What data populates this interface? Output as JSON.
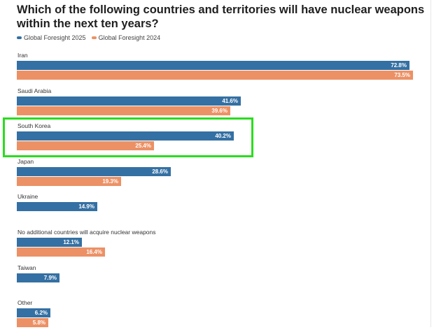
{
  "chart_data": {
    "type": "bar",
    "orientation": "horizontal",
    "title": "Which of the following countries and territories will have nuclear weapons within the next ten years?",
    "legend_position": "top-left",
    "series": [
      {
        "name": "Global Foresight 2025",
        "color": "#3470a3"
      },
      {
        "name": "Global Foresight 2024",
        "color": "#ec9165"
      }
    ],
    "categories": [
      {
        "label": "Iran",
        "values": [
          72.8,
          73.5
        ],
        "value_labels": [
          "72.8%",
          "73.5%"
        ]
      },
      {
        "label": "Saudi Arabia",
        "values": [
          41.6,
          39.6
        ],
        "value_labels": [
          "41.6%",
          "39.6%"
        ]
      },
      {
        "label": "South Korea",
        "values": [
          40.2,
          25.4
        ],
        "value_labels": [
          "40.2%",
          "25.4%"
        ],
        "highlighted": true
      },
      {
        "label": "Japan",
        "values": [
          28.6,
          19.3
        ],
        "value_labels": [
          "28.6%",
          "19.3%"
        ]
      },
      {
        "label": "Ukraine",
        "values": [
          14.9,
          null
        ],
        "value_labels": [
          "14.9%",
          ""
        ]
      },
      {
        "label": "No additional countries will acquire nuclear weapons",
        "values": [
          12.1,
          16.4
        ],
        "value_labels": [
          "12.1%",
          "16.4%"
        ]
      },
      {
        "label": "Taiwan",
        "values": [
          7.9,
          null
        ],
        "value_labels": [
          "7.9%",
          ""
        ]
      },
      {
        "label": "Other",
        "values": [
          6.2,
          5.8
        ],
        "value_labels": [
          "6.2%",
          "5.8%"
        ]
      }
    ],
    "x_range": [
      0,
      100
    ],
    "grid": false
  },
  "highlight_color": "#2bdc1f"
}
